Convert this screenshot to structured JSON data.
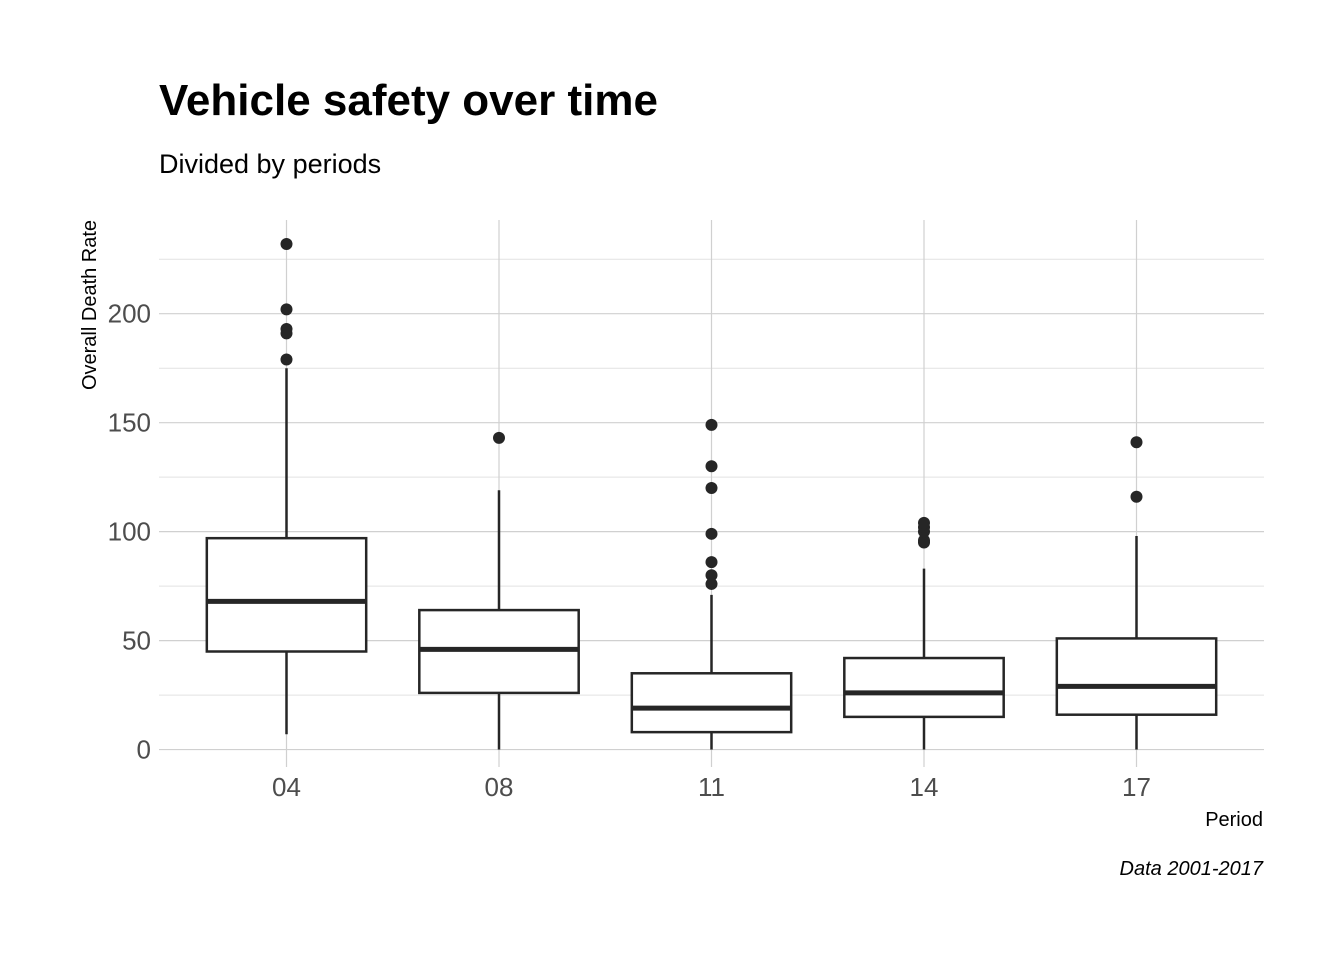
{
  "chart_data": {
    "type": "boxplot",
    "title": "Vehicle safety over time",
    "subtitle": "Divided by periods",
    "xlabel": "Period",
    "ylabel": "Overall Death Rate",
    "caption": "Data 2001-2017",
    "ylim": [
      -8,
      243
    ],
    "yticks": [
      0,
      50,
      100,
      150,
      200
    ],
    "grid": true,
    "categories": [
      "04",
      "08",
      "11",
      "14",
      "17"
    ],
    "boxes": [
      {
        "category": "04",
        "whisker_low": 7,
        "q1": 45,
        "median": 68,
        "q3": 97,
        "whisker_high": 175,
        "outliers": [
          179,
          191,
          193,
          202,
          232
        ]
      },
      {
        "category": "08",
        "whisker_low": 0,
        "q1": 26,
        "median": 46,
        "q3": 64,
        "whisker_high": 119,
        "outliers": [
          143
        ]
      },
      {
        "category": "11",
        "whisker_low": 0,
        "q1": 8,
        "median": 19,
        "q3": 35,
        "whisker_high": 71,
        "outliers": [
          76,
          80,
          86,
          99,
          120,
          130,
          149
        ]
      },
      {
        "category": "14",
        "whisker_low": 0,
        "q1": 15,
        "median": 26,
        "q3": 42,
        "whisker_high": 83,
        "outliers": [
          95,
          96,
          100,
          102,
          104
        ]
      },
      {
        "category": "17",
        "whisker_low": 0,
        "q1": 16,
        "median": 29,
        "q3": 51,
        "whisker_high": 98,
        "outliers": [
          116,
          141
        ]
      }
    ],
    "colors": {
      "box_outline": "#262626",
      "box_fill": "#ffffff",
      "grid": "#d0d0d0",
      "tick_text": "#4d4d4d"
    }
  }
}
